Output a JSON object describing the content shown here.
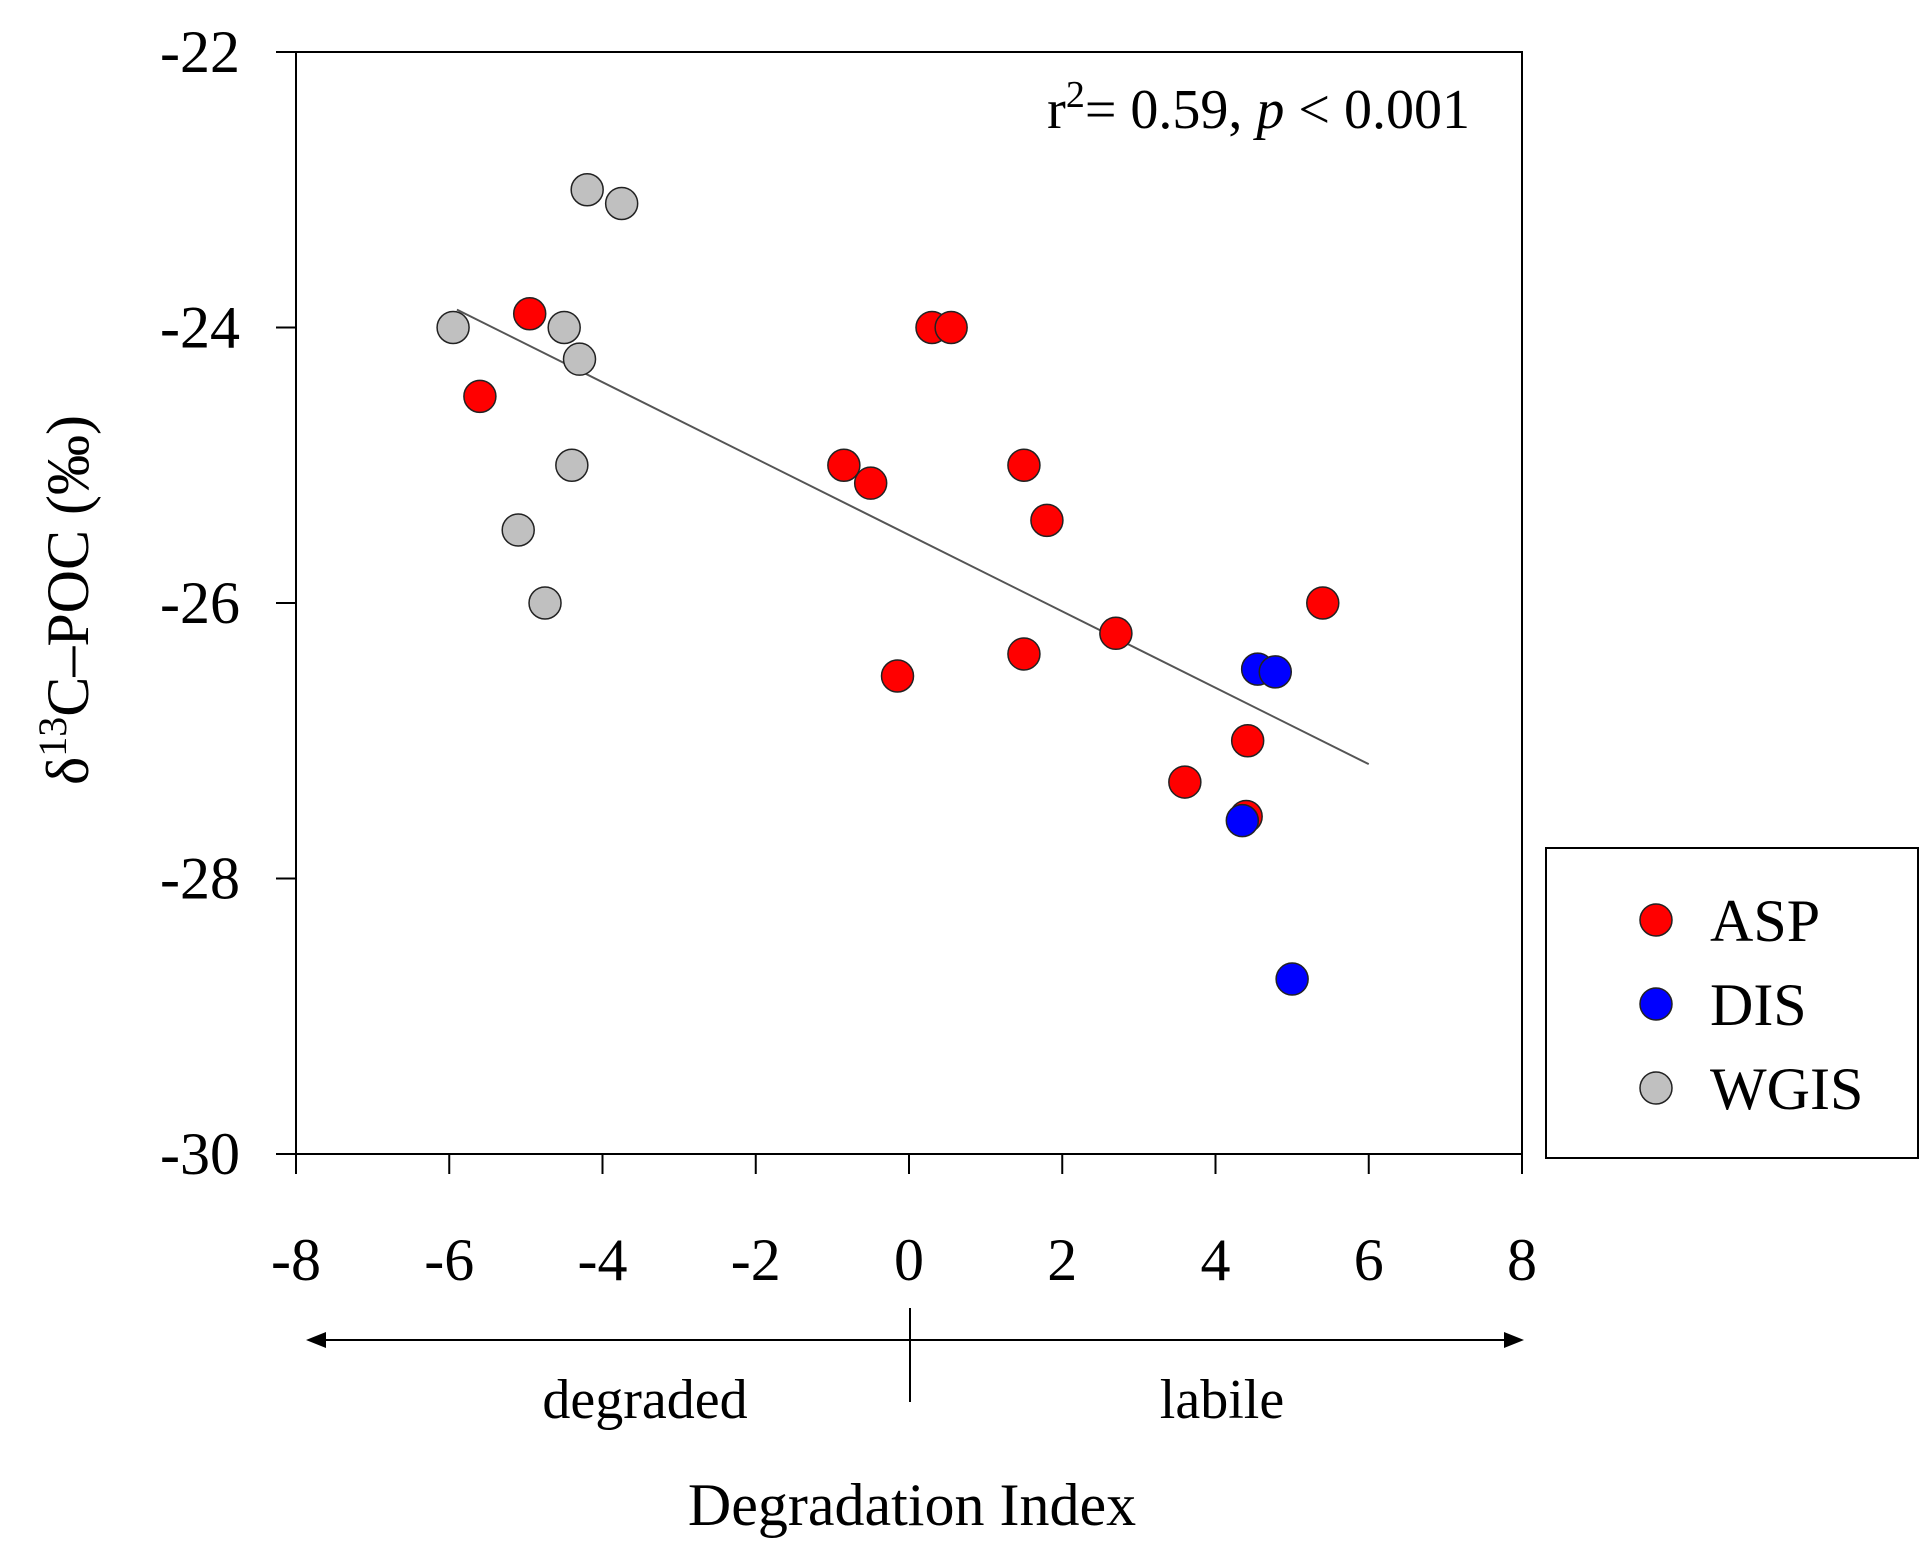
{
  "chart_data": {
    "type": "scatter",
    "title": "",
    "xlabel": "Degradation Index",
    "ylabel_parts": {
      "prefix": "δ",
      "sup": "13",
      "rest": "C–POC (‰)"
    },
    "xlim": [
      -8,
      8
    ],
    "ylim": [
      -30,
      -22
    ],
    "x_ticks": [
      -8,
      -6,
      -4,
      -2,
      0,
      2,
      4,
      6,
      8
    ],
    "x_tick_labels": [
      "-8",
      "-6",
      "-4",
      "-2",
      "0",
      "2",
      "4",
      "6",
      "8"
    ],
    "y_ticks": [
      -30,
      -28,
      -26,
      -24,
      -22
    ],
    "y_tick_labels": [
      "-30",
      "-28",
      "-26",
      "-24",
      "-22"
    ],
    "grid": false,
    "legend_position": "right",
    "series": [
      {
        "name": "ASP",
        "color": "#ff0000",
        "points": [
          {
            "x": -5.6,
            "y": -24.5
          },
          {
            "x": -4.95,
            "y": -23.9
          },
          {
            "x": -0.85,
            "y": -25.0
          },
          {
            "x": -0.5,
            "y": -25.13
          },
          {
            "x": -0.15,
            "y": -26.53
          },
          {
            "x": 0.3,
            "y": -24.0
          },
          {
            "x": 0.55,
            "y": -24.0
          },
          {
            "x": 1.5,
            "y": -25.0
          },
          {
            "x": 1.5,
            "y": -26.37
          },
          {
            "x": 1.8,
            "y": -25.4
          },
          {
            "x": 2.7,
            "y": -26.22
          },
          {
            "x": 3.6,
            "y": -27.3
          },
          {
            "x": 4.4,
            "y": -27.55
          },
          {
            "x": 4.42,
            "y": -27.0
          },
          {
            "x": 5.4,
            "y": -26.0
          }
        ]
      },
      {
        "name": "DIS",
        "color": "#0000ff",
        "points": [
          {
            "x": 4.35,
            "y": -27.58
          },
          {
            "x": 4.55,
            "y": -26.48
          },
          {
            "x": 4.78,
            "y": -26.5
          },
          {
            "x": 5.0,
            "y": -28.73
          }
        ]
      },
      {
        "name": "WGIS",
        "color": "#c0c0c0",
        "points": [
          {
            "x": -5.95,
            "y": -24.0
          },
          {
            "x": -5.1,
            "y": -25.47
          },
          {
            "x": -4.75,
            "y": -26.0
          },
          {
            "x": -4.5,
            "y": -24.0
          },
          {
            "x": -4.4,
            "y": -25.0
          },
          {
            "x": -4.3,
            "y": -24.23
          },
          {
            "x": -4.2,
            "y": -23.0
          },
          {
            "x": -3.75,
            "y": -23.1
          }
        ]
      }
    ],
    "regression_line": {
      "x": [
        -5.9,
        6.0
      ],
      "y": [
        -23.87,
        -27.17
      ]
    },
    "annotation": {
      "r_label": "r",
      "r_sup": "2",
      "r_value": "= 0.59, ",
      "p_label": "p",
      "p_value": " < 0.001"
    },
    "direction_labels": {
      "left": "degraded",
      "right": "labile"
    }
  }
}
